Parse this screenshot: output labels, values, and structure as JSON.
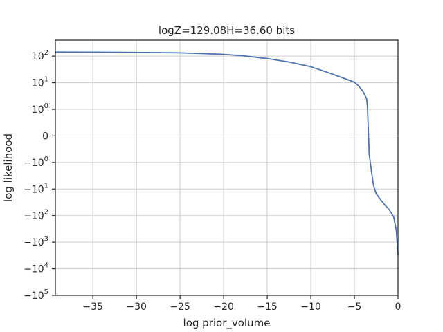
{
  "chart_data": {
    "type": "line",
    "title": "logZ=129.08H=36.60 bits",
    "xlabel": "log prior_volume",
    "ylabel": "log likelihood",
    "xlim": [
      -39.3,
      0
    ],
    "yscale": "symlog",
    "ylim": [
      -100000,
      400
    ],
    "grid": true,
    "x_ticks": [
      {
        "value": -35,
        "label": "−35"
      },
      {
        "value": -30,
        "label": "−30"
      },
      {
        "value": -25,
        "label": "−25"
      },
      {
        "value": -20,
        "label": "−20"
      },
      {
        "value": -15,
        "label": "−15"
      },
      {
        "value": -10,
        "label": "−10"
      },
      {
        "value": -5,
        "label": "−5"
      },
      {
        "value": 0,
        "label": "0"
      }
    ],
    "y_ticks": [
      {
        "value": 100,
        "base": "10",
        "exp": "2",
        "sign": ""
      },
      {
        "value": 10,
        "base": "10",
        "exp": "1",
        "sign": ""
      },
      {
        "value": 1,
        "base": "10",
        "exp": "0",
        "sign": ""
      },
      {
        "value": 0,
        "base": "0",
        "exp": "",
        "sign": ""
      },
      {
        "value": -1,
        "base": "10",
        "exp": "0",
        "sign": "−"
      },
      {
        "value": -10,
        "base": "10",
        "exp": "1",
        "sign": "−"
      },
      {
        "value": -100,
        "base": "10",
        "exp": "2",
        "sign": "−"
      },
      {
        "value": -1000,
        "base": "10",
        "exp": "3",
        "sign": "−"
      },
      {
        "value": -10000,
        "base": "10",
        "exp": "4",
        "sign": "−"
      },
      {
        "value": -100000,
        "base": "10",
        "exp": "5",
        "sign": "−"
      }
    ],
    "series": [
      {
        "color": "#4c72b0",
        "x": [
          -39.3,
          -35,
          -30,
          -25,
          -20,
          -17.5,
          -15,
          -12.5,
          -10,
          -7.5,
          -5,
          -4.5,
          -4,
          -3.6,
          -3.5,
          -3.3,
          -3.0,
          -2.8,
          -2.5,
          -2.0,
          -1.5,
          -1.0,
          -0.5,
          -0.2,
          0
        ],
        "y": [
          142,
          141,
          138,
          133,
          117,
          101,
          81,
          60,
          40,
          21,
          10.5,
          7.5,
          4.6,
          2.5,
          1.2,
          -0.7,
          -2.7,
          -7.5,
          -15,
          -25,
          -40,
          -60,
          -110,
          -350,
          -3000
        ]
      }
    ]
  }
}
